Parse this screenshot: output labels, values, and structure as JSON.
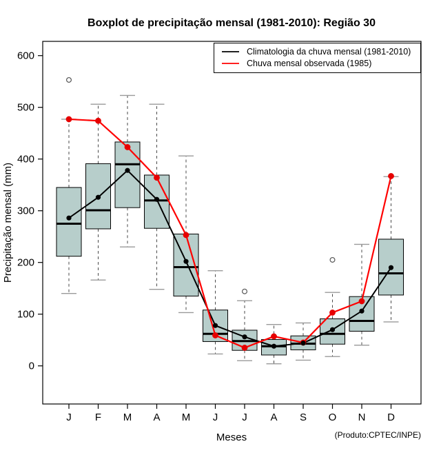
{
  "chart_data": {
    "type": "boxplot",
    "title": "Boxplot de precipitação mensal (1981-2010): Região 30",
    "xlabel": "Meses",
    "ylabel": "Precipitação mensal (mm)",
    "footnote": "(Produto:CPTEC/INPE)",
    "categories": [
      "J",
      "F",
      "M",
      "A",
      "M",
      "J",
      "J",
      "A",
      "S",
      "O",
      "N",
      "D"
    ],
    "yticks": [
      0,
      100,
      200,
      300,
      400,
      500,
      600
    ],
    "ylim": [
      -74,
      628
    ],
    "grid": false,
    "legend_position": "top-right",
    "legend": [
      {
        "label": "Climatologia da chuva mensal (1981-2010)",
        "color": "#000000"
      },
      {
        "label": "Chuva mensal observada (1985)",
        "color": "#ff0000"
      }
    ],
    "boxes": [
      {
        "month": "J",
        "low": 140,
        "q1": 212,
        "median": 275,
        "q3": 345,
        "high": 477,
        "outliers": [
          553
        ]
      },
      {
        "month": "F",
        "low": 166,
        "q1": 265,
        "median": 301,
        "q3": 391,
        "high": 506,
        "outliers": []
      },
      {
        "month": "M",
        "low": 230,
        "q1": 306,
        "median": 390,
        "q3": 433,
        "high": 523,
        "outliers": []
      },
      {
        "month": "A",
        "low": 148,
        "q1": 266,
        "median": 320,
        "q3": 369,
        "high": 506,
        "outliers": []
      },
      {
        "month": "M",
        "low": 103,
        "q1": 135,
        "median": 191,
        "q3": 255,
        "high": 406,
        "outliers": []
      },
      {
        "month": "J",
        "low": 23,
        "q1": 47,
        "median": 62,
        "q3": 108,
        "high": 184,
        "outliers": []
      },
      {
        "month": "J",
        "low": 10,
        "q1": 30,
        "median": 48,
        "q3": 69,
        "high": 126,
        "outliers": [
          144
        ]
      },
      {
        "month": "A",
        "low": 4,
        "q1": 21,
        "median": 38,
        "q3": 51,
        "high": 80,
        "outliers": []
      },
      {
        "month": "S",
        "low": 11,
        "q1": 31,
        "median": 43,
        "q3": 58,
        "high": 83,
        "outliers": []
      },
      {
        "month": "O",
        "low": 18,
        "q1": 42,
        "median": 62,
        "q3": 91,
        "high": 142,
        "outliers": [
          205
        ]
      },
      {
        "month": "N",
        "low": 40,
        "q1": 67,
        "median": 87,
        "q3": 134,
        "high": 235,
        "outliers": []
      },
      {
        "month": "D",
        "low": 85,
        "q1": 137,
        "median": 179,
        "q3": 245,
        "high": 366,
        "outliers": []
      }
    ],
    "series": [
      {
        "name": "Climatologia da chuva mensal (1981-2010)",
        "color": "#000000",
        "values": [
          286,
          326,
          378,
          322,
          202,
          78,
          56,
          38,
          44,
          70,
          106,
          190
        ]
      },
      {
        "name": "Chuva mensal observada (1985)",
        "color": "#ff0000",
        "values": [
          477,
          474,
          423,
          364,
          253,
          59,
          35,
          57,
          45,
          103,
          125,
          367
        ]
      }
    ]
  },
  "colors": {
    "box_fill": "#b7cecb",
    "box_border": "#000000",
    "median": "#000000",
    "whisker": "#4a4a4a",
    "cap": "#999999",
    "outlier": "#555555",
    "climatology": "#000000",
    "observed": "#ff0000",
    "observed_point": "#e60000"
  }
}
